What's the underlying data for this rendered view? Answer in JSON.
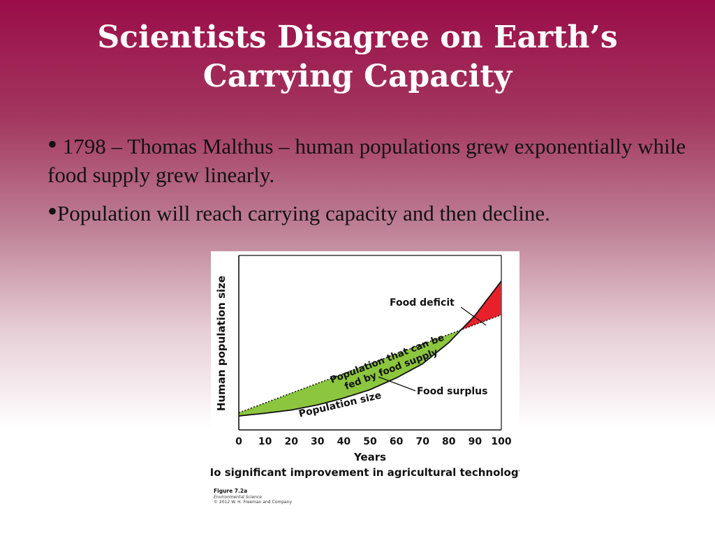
{
  "slide": {
    "title": "Scientists Disagree on Earth’s Carrying Capacity",
    "bullets": [
      "1798 – Thomas Malthus – human populations grew exponentially while food supply grew linearly.",
      "Population will reach carrying capacity and then decline."
    ],
    "bullet_symbol": "•"
  },
  "chart_data": {
    "type": "area",
    "ylabel": "Human population size",
    "xlabel": "Years",
    "caption": "No significant improvement in agricultural technology",
    "x_ticks": [
      0,
      10,
      20,
      30,
      40,
      50,
      60,
      70,
      80,
      90,
      100
    ],
    "xlim": [
      0,
      100
    ],
    "ylim": [
      0,
      1
    ],
    "series": [
      {
        "name": "Population that can be fed by food supply",
        "style": "dotted",
        "x": [
          0,
          100
        ],
        "y": [
          0.02,
          0.63
        ]
      },
      {
        "name": "Population size",
        "style": "solid",
        "x": [
          0,
          10,
          20,
          30,
          40,
          50,
          60,
          70,
          80,
          90,
          100
        ],
        "y": [
          0.0,
          0.017,
          0.037,
          0.069,
          0.112,
          0.164,
          0.237,
          0.325,
          0.457,
          0.627,
          0.84
        ]
      }
    ],
    "regions": [
      {
        "label": "Food surplus",
        "color": "#8cc63e",
        "between": "x < 80"
      },
      {
        "label": "Food deficit",
        "color": "#e8202a",
        "between": "x > 80"
      }
    ],
    "grid": false,
    "credit": {
      "figure": "Figure 7.2a",
      "book": "Environmental Science",
      "copyright": "© 2012 W. H. Freeman and Company"
    }
  }
}
